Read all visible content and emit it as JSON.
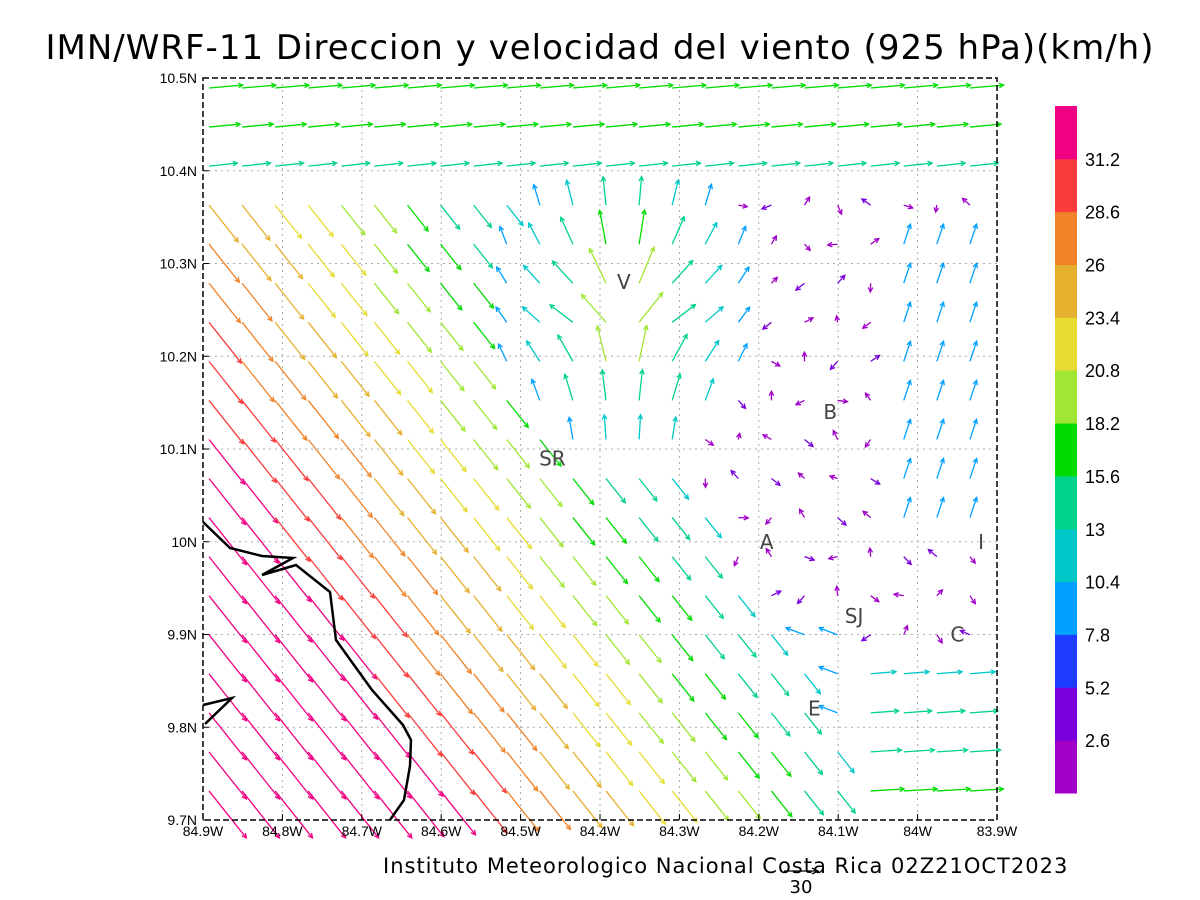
{
  "title": "IMN/WRF-11 Direccion y velocidad del viento (925 hPa)(km/h)",
  "footer": "Instituto Meteorologico Nacional Costa Rica 02Z21OCT2023",
  "reference_vector_label": "30",
  "map": {
    "lon_range": [
      -84.9,
      -83.9
    ],
    "lat_range": [
      9.7,
      10.5
    ],
    "x_ticks": [
      "84.9W",
      "84.8W",
      "84.7W",
      "84.6W",
      "84.5W",
      "84.4W",
      "84.3W",
      "84.2W",
      "84.1W",
      "84W",
      "83.9W"
    ],
    "y_ticks": [
      "9.7N",
      "9.8N",
      "9.9N",
      "10N",
      "10.1N",
      "10.2N",
      "10.3N",
      "10.4N",
      "10.5N"
    ],
    "grid": true,
    "places": [
      {
        "label": "V",
        "lon": -84.37,
        "lat": 10.28
      },
      {
        "label": "B",
        "lon": -84.11,
        "lat": 10.14
      },
      {
        "label": "SR",
        "lon": -84.46,
        "lat": 10.09
      },
      {
        "label": "A",
        "lon": -84.19,
        "lat": 10.0
      },
      {
        "label": "I",
        "lon": -83.92,
        "lat": 10.0
      },
      {
        "label": "SJ",
        "lon": -84.08,
        "lat": 9.92
      },
      {
        "label": "C",
        "lon": -83.95,
        "lat": 9.9
      },
      {
        "label": "E",
        "lon": -84.13,
        "lat": 9.82
      }
    ]
  },
  "colorbar": {
    "labels": [
      "2.6",
      "5.2",
      "7.8",
      "10.4",
      "13",
      "15.6",
      "18.2",
      "20.8",
      "23.4",
      "26",
      "28.6",
      "31.2"
    ],
    "colors": [
      "#a000c8",
      "#7800dc",
      "#1e3cff",
      "#00a0ff",
      "#00c8c8",
      "#00d28c",
      "#00dc00",
      "#a0e632",
      "#e6dc32",
      "#e6af2d",
      "#f08228",
      "#fa3c3c",
      "#f00082"
    ]
  }
}
